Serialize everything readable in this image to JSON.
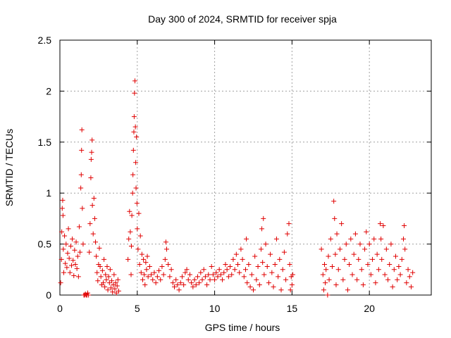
{
  "chart_data": {
    "type": "scatter",
    "title": "Day 300 of 2024, SRMTID for receiver spja",
    "xlabel": "GPS time / hours",
    "ylabel": "SRMTID / TECUs",
    "xlim": [
      0,
      24
    ],
    "ylim": [
      0,
      2.5
    ],
    "xticks": [
      0,
      5,
      10,
      15,
      20
    ],
    "yticks": [
      0,
      0.5,
      1,
      1.5,
      2,
      2.5
    ],
    "xtick_labels": [
      "0",
      "5",
      "10",
      "15",
      "20"
    ],
    "ytick_labels": [
      "0",
      "0.5",
      "1",
      "1.5",
      "2",
      "2.5"
    ],
    "grid": true,
    "marker": "+",
    "color": "#e00000",
    "series": [
      {
        "name": "spja",
        "points": [
          [
            0.05,
            0.12
          ],
          [
            0.1,
            0.35
          ],
          [
            0.12,
            0.62
          ],
          [
            0.15,
            0.85
          ],
          [
            0.18,
            0.93
          ],
          [
            0.2,
            0.78
          ],
          [
            0.22,
            0.45
          ],
          [
            0.25,
            0.22
          ],
          [
            0.3,
            0.58
          ],
          [
            0.35,
            0.31
          ],
          [
            0.4,
            0.5
          ],
          [
            0.45,
            0.27
          ],
          [
            0.5,
            0.41
          ],
          [
            0.55,
            0.65
          ],
          [
            0.6,
            0.36
          ],
          [
            0.65,
            0.22
          ],
          [
            0.7,
            0.48
          ],
          [
            0.75,
            0.29
          ],
          [
            0.8,
            0.55
          ],
          [
            0.85,
            0.34
          ],
          [
            0.9,
            0.19
          ],
          [
            0.95,
            0.44
          ],
          [
            1.0,
            0.3
          ],
          [
            1.05,
            0.52
          ],
          [
            1.1,
            0.26
          ],
          [
            1.15,
            0.38
          ],
          [
            1.2,
            0.18
          ],
          [
            1.25,
            0.67
          ],
          [
            1.3,
            0.42
          ],
          [
            1.35,
            1.05
          ],
          [
            1.38,
            1.18
          ],
          [
            1.4,
            1.42
          ],
          [
            1.42,
            1.62
          ],
          [
            1.45,
            0.85
          ],
          [
            1.5,
            0.5
          ],
          [
            1.55,
            0.0
          ],
          [
            1.6,
            0.0
          ],
          [
            1.65,
            0.01
          ],
          [
            1.7,
            0.0
          ],
          [
            1.75,
            0.0
          ],
          [
            1.8,
            0.02
          ],
          [
            1.85,
            0.0
          ],
          [
            1.9,
            0.42
          ],
          [
            1.95,
            0.7
          ],
          [
            2.0,
            1.15
          ],
          [
            2.02,
            1.33
          ],
          [
            2.05,
            1.4
          ],
          [
            2.08,
            1.52
          ],
          [
            2.1,
            0.88
          ],
          [
            2.15,
            0.6
          ],
          [
            2.2,
            0.95
          ],
          [
            2.25,
            0.75
          ],
          [
            2.3,
            0.52
          ],
          [
            2.35,
            0.38
          ],
          [
            2.4,
            0.22
          ],
          [
            2.45,
            0.14
          ],
          [
            2.5,
            0.3
          ],
          [
            2.55,
            0.46
          ],
          [
            2.6,
            0.28
          ],
          [
            2.65,
            0.18
          ],
          [
            2.7,
            0.1
          ],
          [
            2.75,
            0.24
          ],
          [
            2.8,
            0.12
          ],
          [
            2.85,
            0.35
          ],
          [
            2.9,
            0.08
          ],
          [
            2.95,
            0.2
          ],
          [
            3.0,
            0.15
          ],
          [
            3.05,
            0.28
          ],
          [
            3.1,
            0.05
          ],
          [
            3.15,
            0.18
          ],
          [
            3.2,
            0.12
          ],
          [
            3.25,
            0.25
          ],
          [
            3.3,
            0.07
          ],
          [
            3.35,
            0.14
          ],
          [
            3.4,
            0.03
          ],
          [
            3.45,
            0.1
          ],
          [
            3.5,
            0.2
          ],
          [
            3.55,
            0.06
          ],
          [
            3.6,
            0.12
          ],
          [
            3.65,
            0.02
          ],
          [
            3.7,
            0.09
          ],
          [
            3.75,
            0.15
          ],
          [
            3.8,
            0.04
          ],
          [
            4.4,
            0.35
          ],
          [
            4.45,
            0.55
          ],
          [
            4.5,
            0.82
          ],
          [
            4.55,
            0.62
          ],
          [
            4.6,
            0.2
          ],
          [
            4.62,
            0.48
          ],
          [
            4.65,
            0.78
          ],
          [
            4.7,
            1.0
          ],
          [
            4.72,
            1.18
          ],
          [
            4.75,
            1.42
          ],
          [
            4.78,
            1.6
          ],
          [
            4.8,
            1.75
          ],
          [
            4.82,
            1.98
          ],
          [
            4.85,
            2.1
          ],
          [
            4.88,
            1.65
          ],
          [
            4.9,
            1.3
          ],
          [
            4.92,
            1.05
          ],
          [
            4.95,
            1.55
          ],
          [
            4.98,
            0.9
          ],
          [
            5.0,
            0.65
          ],
          [
            5.05,
            0.45
          ],
          [
            5.1,
            0.8
          ],
          [
            5.15,
            0.3
          ],
          [
            5.2,
            0.58
          ],
          [
            5.25,
            0.22
          ],
          [
            5.3,
            0.4
          ],
          [
            5.35,
            0.15
          ],
          [
            5.4,
            0.35
          ],
          [
            5.45,
            0.2
          ],
          [
            5.5,
            0.1
          ],
          [
            5.55,
            0.32
          ],
          [
            5.6,
            0.25
          ],
          [
            5.65,
            0.38
          ],
          [
            5.7,
            0.18
          ],
          [
            5.8,
            0.28
          ],
          [
            5.9,
            0.2
          ],
          [
            6.0,
            0.15
          ],
          [
            6.1,
            0.22
          ],
          [
            6.2,
            0.12
          ],
          [
            6.3,
            0.18
          ],
          [
            6.4,
            0.24
          ],
          [
            6.5,
            0.15
          ],
          [
            6.6,
            0.28
          ],
          [
            6.7,
            0.2
          ],
          [
            6.8,
            0.35
          ],
          [
            6.85,
            0.52
          ],
          [
            6.9,
            0.45
          ],
          [
            7.0,
            0.3
          ],
          [
            7.1,
            0.18
          ],
          [
            7.2,
            0.25
          ],
          [
            7.3,
            0.12
          ],
          [
            7.4,
            0.08
          ],
          [
            7.5,
            0.15
          ],
          [
            7.6,
            0.1
          ],
          [
            7.7,
            0.05
          ],
          [
            7.8,
            0.12
          ],
          [
            7.9,
            0.18
          ],
          [
            8.0,
            0.1
          ],
          [
            8.1,
            0.22
          ],
          [
            8.2,
            0.25
          ],
          [
            8.3,
            0.15
          ],
          [
            8.4,
            0.2
          ],
          [
            8.5,
            0.12
          ],
          [
            8.6,
            0.08
          ],
          [
            8.7,
            0.15
          ],
          [
            8.8,
            0.1
          ],
          [
            8.9,
            0.18
          ],
          [
            9.0,
            0.12
          ],
          [
            9.1,
            0.22
          ],
          [
            9.2,
            0.15
          ],
          [
            9.3,
            0.25
          ],
          [
            9.4,
            0.18
          ],
          [
            9.5,
            0.1
          ],
          [
            9.6,
            0.2
          ],
          [
            9.7,
            0.15
          ],
          [
            9.8,
            0.28
          ],
          [
            9.9,
            0.2
          ],
          [
            10.0,
            0.15
          ],
          [
            10.1,
            0.22
          ],
          [
            10.2,
            0.18
          ],
          [
            10.3,
            0.25
          ],
          [
            10.4,
            0.2
          ],
          [
            10.5,
            0.15
          ],
          [
            10.6,
            0.22
          ],
          [
            10.7,
            0.3
          ],
          [
            10.8,
            0.25
          ],
          [
            10.9,
            0.18
          ],
          [
            11.0,
            0.28
          ],
          [
            11.1,
            0.2
          ],
          [
            11.2,
            0.35
          ],
          [
            11.3,
            0.25
          ],
          [
            11.4,
            0.4
          ],
          [
            11.5,
            0.3
          ],
          [
            11.6,
            0.22
          ],
          [
            11.7,
            0.45
          ],
          [
            11.8,
            0.35
          ],
          [
            11.9,
            0.18
          ],
          [
            12.0,
            0.25
          ],
          [
            12.05,
            0.55
          ],
          [
            12.1,
            0.12
          ],
          [
            12.2,
            0.3
          ],
          [
            12.3,
            0.08
          ],
          [
            12.4,
            0.2
          ],
          [
            12.5,
            0.05
          ],
          [
            12.6,
            0.38
          ],
          [
            12.7,
            0.15
          ],
          [
            12.8,
            0.28
          ],
          [
            12.9,
            0.1
          ],
          [
            13.0,
            0.45
          ],
          [
            13.05,
            0.65
          ],
          [
            13.1,
            0.32
          ],
          [
            13.15,
            0.75
          ],
          [
            13.2,
            0.2
          ],
          [
            13.3,
            0.5
          ],
          [
            13.4,
            0.28
          ],
          [
            13.5,
            0.12
          ],
          [
            13.6,
            0.4
          ],
          [
            13.7,
            0.22
          ],
          [
            13.8,
            0.08
          ],
          [
            13.9,
            0.3
          ],
          [
            14.0,
            0.55
          ],
          [
            14.1,
            0.18
          ],
          [
            14.2,
            0.35
          ],
          [
            14.3,
            0.05
          ],
          [
            14.4,
            0.25
          ],
          [
            14.5,
            0.42
          ],
          [
            14.6,
            0.15
          ],
          [
            14.7,
            0.6
          ],
          [
            14.8,
            0.7
          ],
          [
            14.85,
            0.3
          ],
          [
            14.9,
            0.05
          ],
          [
            14.95,
            0.18
          ],
          [
            15.0,
            0.1
          ],
          [
            15.05,
            0.2
          ],
          [
            16.9,
            0.45
          ],
          [
            17.0,
            0.2
          ],
          [
            17.05,
            0.05
          ],
          [
            17.1,
            0.3
          ],
          [
            17.15,
            0.12
          ],
          [
            17.2,
            0.25
          ],
          [
            17.3,
            0.0
          ],
          [
            17.35,
            0.38
          ],
          [
            17.4,
            0.15
          ],
          [
            17.5,
            0.55
          ],
          [
            17.6,
            0.28
          ],
          [
            17.7,
            0.92
          ],
          [
            17.75,
            0.75
          ],
          [
            17.8,
            0.4
          ],
          [
            17.85,
            0.1
          ],
          [
            17.9,
            0.6
          ],
          [
            18.0,
            0.25
          ],
          [
            18.1,
            0.45
          ],
          [
            18.2,
            0.7
          ],
          [
            18.3,
            0.15
          ],
          [
            18.4,
            0.35
          ],
          [
            18.5,
            0.5
          ],
          [
            18.6,
            0.05
          ],
          [
            18.7,
            0.3
          ],
          [
            18.8,
            0.55
          ],
          [
            18.9,
            0.2
          ],
          [
            19.0,
            0.4
          ],
          [
            19.1,
            0.6
          ],
          [
            19.2,
            0.15
          ],
          [
            19.3,
            0.35
          ],
          [
            19.4,
            0.5
          ],
          [
            19.5,
            0.25
          ],
          [
            19.6,
            0.1
          ],
          [
            19.7,
            0.45
          ],
          [
            19.8,
            0.62
          ],
          [
            19.9,
            0.3
          ],
          [
            20.0,
            0.5
          ],
          [
            20.1,
            0.2
          ],
          [
            20.2,
            0.35
          ],
          [
            20.3,
            0.55
          ],
          [
            20.4,
            0.12
          ],
          [
            20.5,
            0.4
          ],
          [
            20.6,
            0.25
          ],
          [
            20.7,
            0.7
          ],
          [
            20.75,
            0.55
          ],
          [
            20.8,
            0.35
          ],
          [
            20.9,
            0.68
          ],
          [
            21.0,
            0.2
          ],
          [
            21.1,
            0.45
          ],
          [
            21.2,
            0.15
          ],
          [
            21.3,
            0.3
          ],
          [
            21.4,
            0.5
          ],
          [
            21.5,
            0.08
          ],
          [
            21.6,
            0.25
          ],
          [
            21.7,
            0.38
          ],
          [
            21.8,
            0.15
          ],
          [
            21.9,
            0.28
          ],
          [
            22.0,
            0.2
          ],
          [
            22.1,
            0.35
          ],
          [
            22.2,
            0.55
          ],
          [
            22.25,
            0.68
          ],
          [
            22.3,
            0.45
          ],
          [
            22.4,
            0.12
          ],
          [
            22.5,
            0.25
          ],
          [
            22.6,
            0.18
          ],
          [
            22.7,
            0.08
          ],
          [
            22.8,
            0.22
          ]
        ]
      }
    ]
  }
}
